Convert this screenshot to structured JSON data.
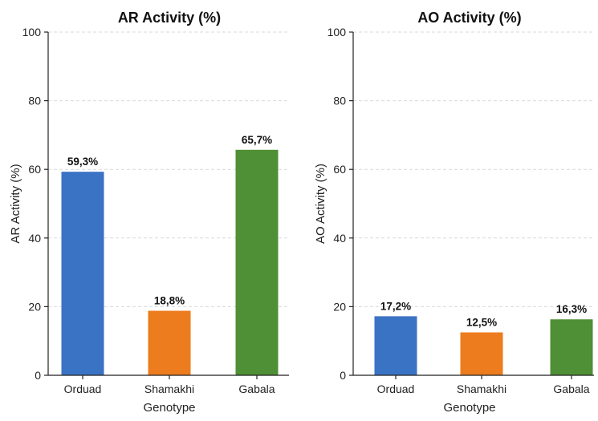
{
  "chart_data": [
    {
      "type": "bar",
      "title": "AR Activity (%)",
      "xlabel": "Genotype",
      "ylabel": "AR Activity (%)",
      "categories": [
        "Orduad",
        "Shamakhi",
        "Gabala"
      ],
      "values": [
        59.3,
        18.8,
        65.7
      ],
      "data_labels": [
        "59,3%",
        "18,8%",
        "65,7%"
      ],
      "colors": [
        "#3a72c4",
        "#ec7c1e",
        "#4f8f36"
      ],
      "ylim": [
        0,
        100
      ],
      "yticks": [
        0,
        20,
        40,
        60,
        80,
        100
      ],
      "grid": true
    },
    {
      "type": "bar",
      "title": "AO Activity (%)",
      "xlabel": "Genotype",
      "ylabel": "AO Activity (%)",
      "categories": [
        "Orduad",
        "Shamakhi",
        "Gabala"
      ],
      "values": [
        17.2,
        12.5,
        16.3
      ],
      "data_labels": [
        "17,2%",
        "12,5%",
        "16,3%"
      ],
      "colors": [
        "#3a72c4",
        "#ec7c1e",
        "#4f8f36"
      ],
      "ylim": [
        0,
        100
      ],
      "yticks": [
        0,
        20,
        40,
        60,
        80,
        100
      ],
      "grid": true
    }
  ]
}
